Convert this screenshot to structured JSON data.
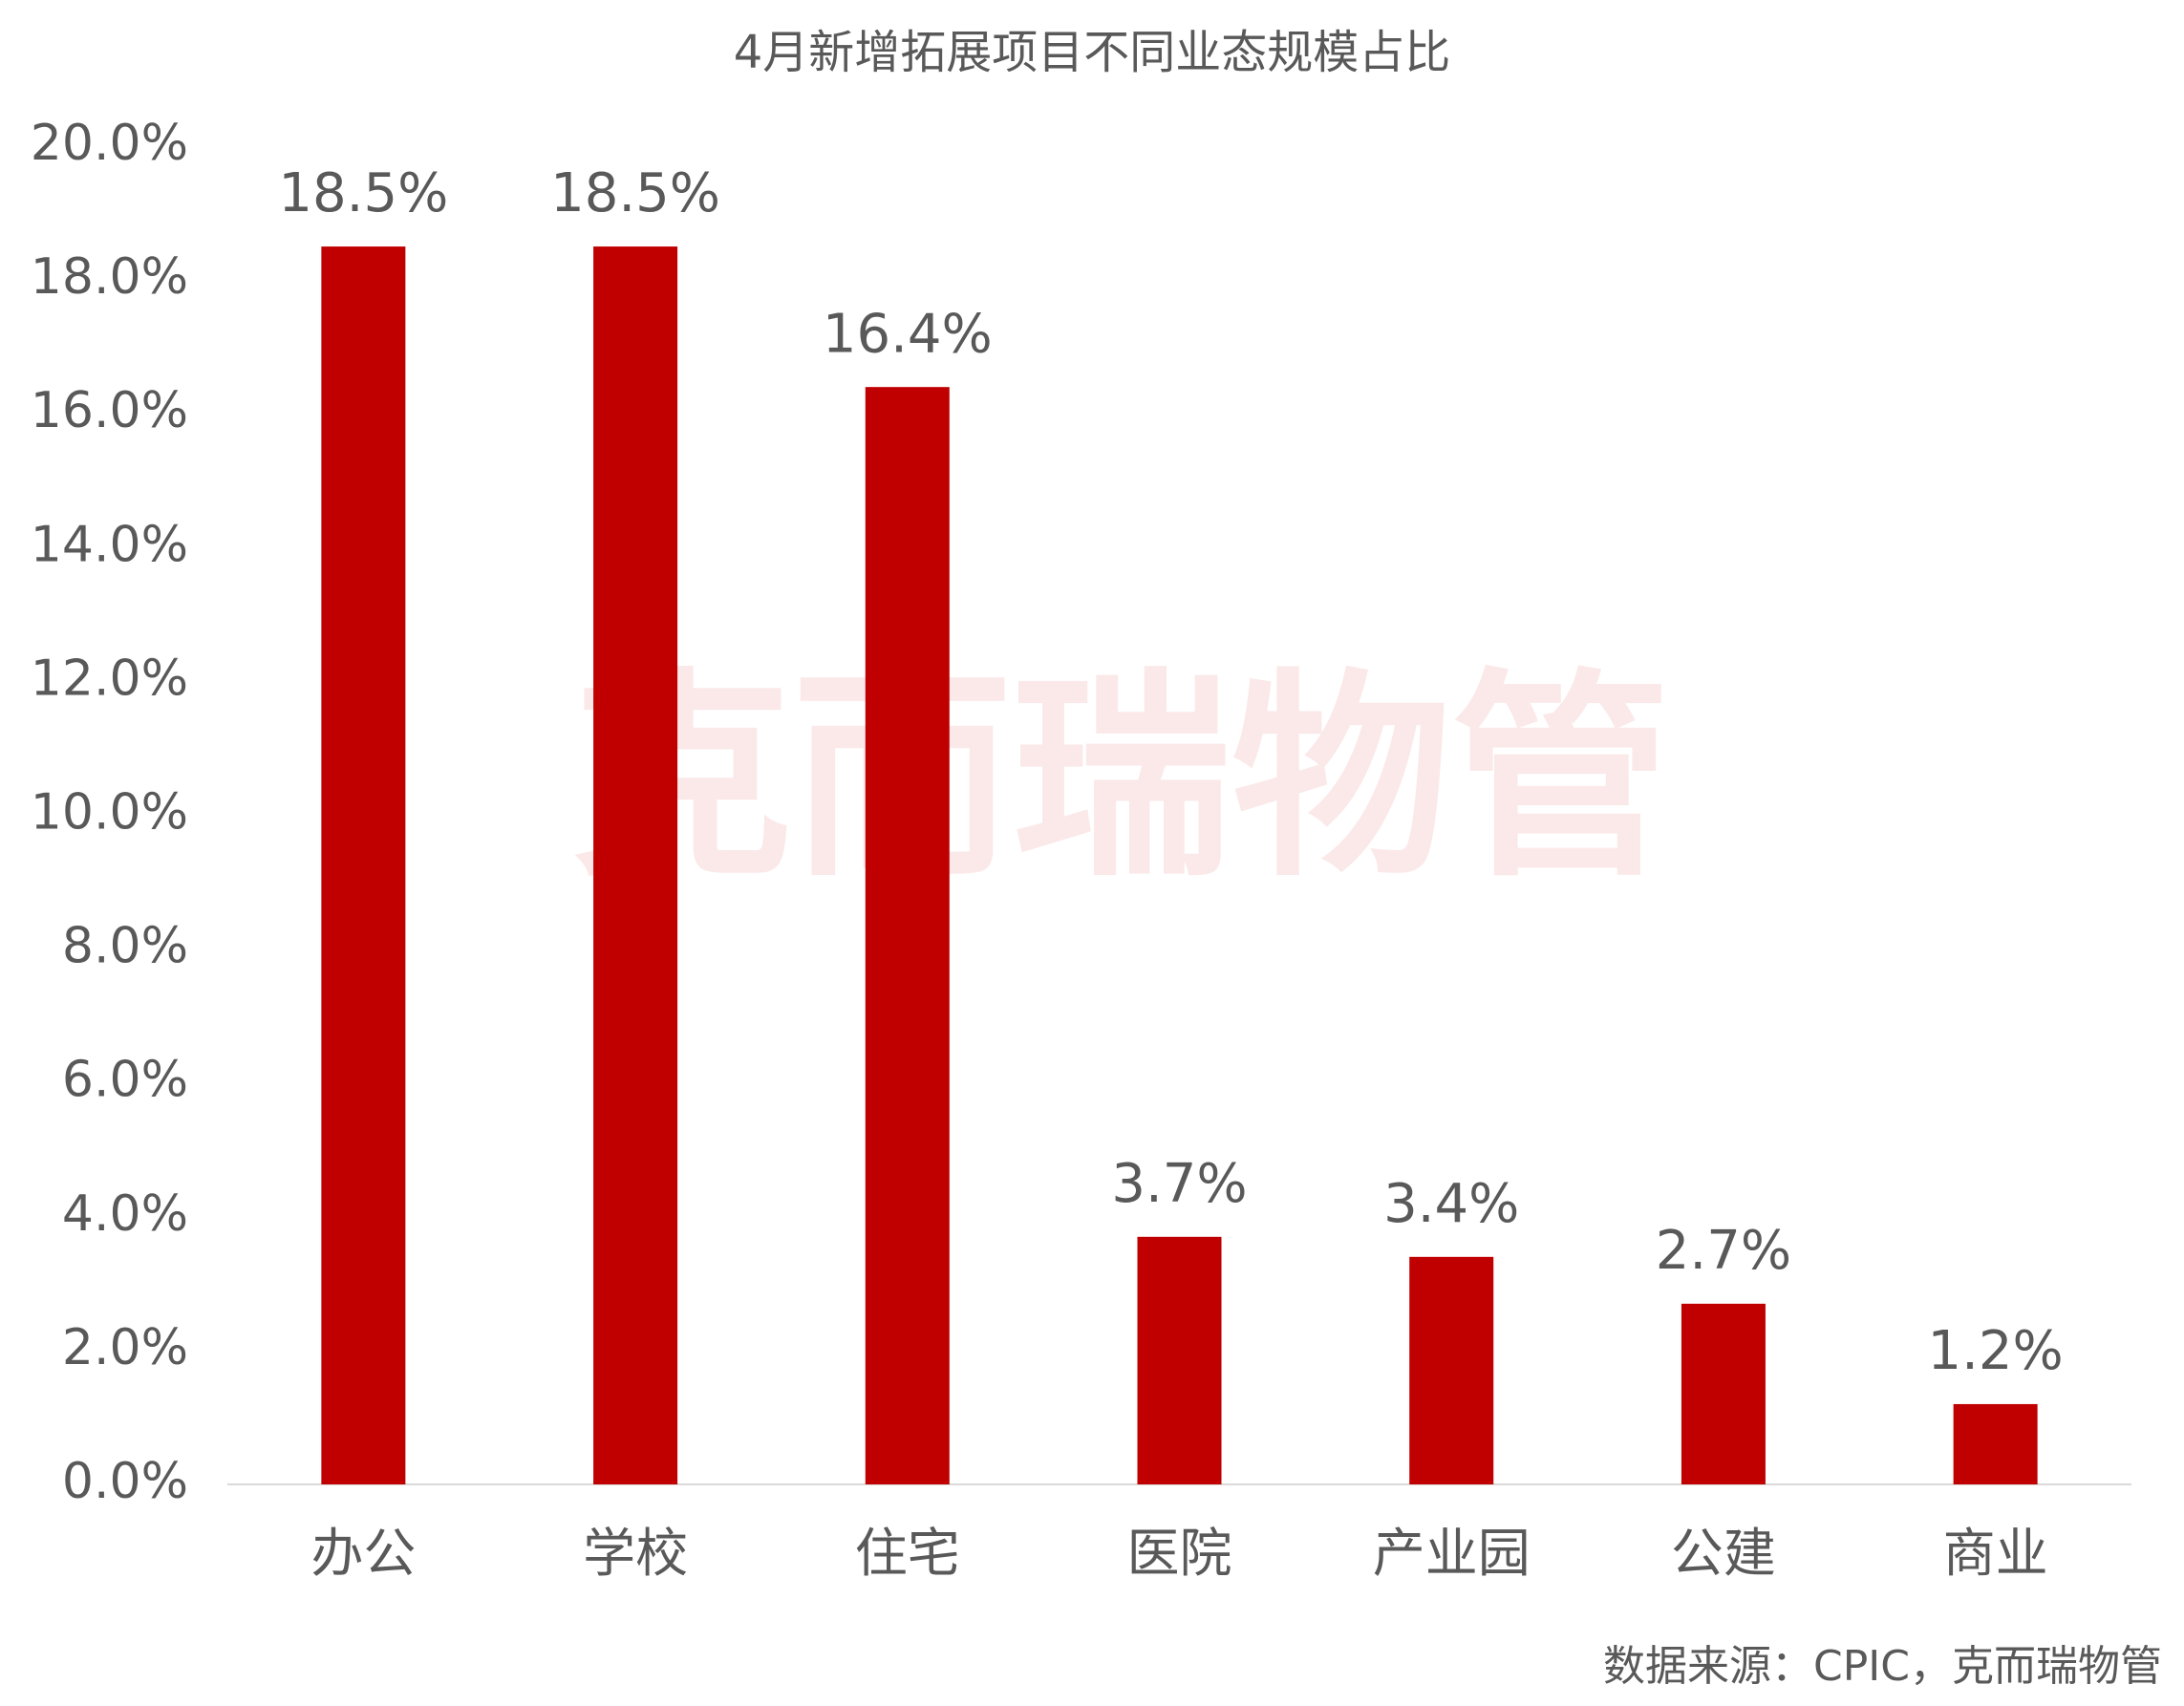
{
  "chart_data": {
    "type": "bar",
    "title": "4月新增拓展项目不同业态规模占比",
    "categories": [
      "办公",
      "学校",
      "住宅",
      "医院",
      "产业园",
      "公建",
      "商业"
    ],
    "values": [
      18.5,
      18.5,
      16.4,
      3.7,
      3.4,
      2.7,
      1.2
    ],
    "value_labels": [
      "18.5%",
      "18.5%",
      "16.4%",
      "3.7%",
      "3.4%",
      "2.7%",
      "1.2%"
    ],
    "color": "#c00000",
    "ylim": [
      0,
      20
    ],
    "yticks": [
      {
        "value": 0,
        "label": "0.0%"
      },
      {
        "value": 2,
        "label": "2.0%"
      },
      {
        "value": 4,
        "label": "4.0%"
      },
      {
        "value": 6,
        "label": "6.0%"
      },
      {
        "value": 8,
        "label": "8.0%"
      },
      {
        "value": 10,
        "label": "10.0%"
      },
      {
        "value": 12,
        "label": "12.0%"
      },
      {
        "value": 14,
        "label": "14.0%"
      },
      {
        "value": 16,
        "label": "16.0%"
      },
      {
        "value": 18,
        "label": "18.0%"
      },
      {
        "value": 20,
        "label": "20.0%"
      }
    ],
    "grid": false,
    "watermark": "克而瑞物管",
    "source": "数据来源：CPIC，克而瑞物管"
  }
}
